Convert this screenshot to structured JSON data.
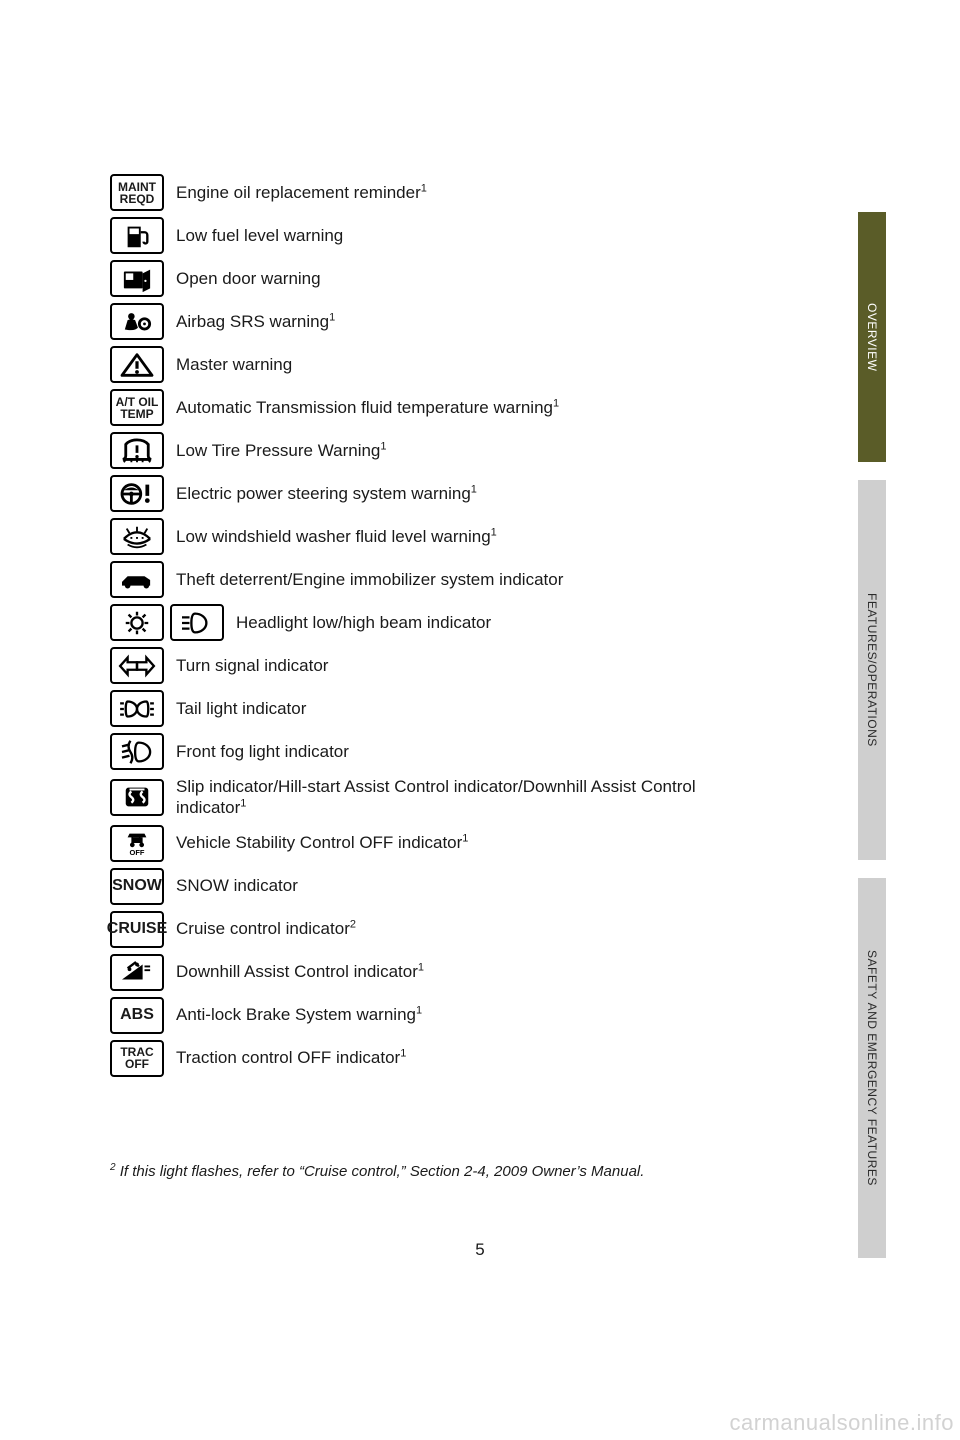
{
  "page_number": "5",
  "watermark": "carmanualsonline.info",
  "footnote": {
    "marker": "2",
    "text": " If this light flashes, refer to “Cruise control,” Section 2-4, 2009 Owner’s Manual."
  },
  "tabs": {
    "overview": "OVERVIEW",
    "features": "FEATURES/OPERATIONS",
    "safety": "SAFETY AND EMERGENCY FEATURES"
  },
  "rows": [
    {
      "icon": "maint-reqd",
      "text": "Engine oil replacement reminder",
      "sup": "1"
    },
    {
      "icon": "fuel",
      "text": "Low fuel level warning"
    },
    {
      "icon": "door",
      "text": "Open door warning"
    },
    {
      "icon": "airbag",
      "text": "Airbag SRS warning",
      "sup": "1"
    },
    {
      "icon": "master",
      "text": "Master warning"
    },
    {
      "icon": "at-oil",
      "text": "Automatic Transmission fluid temperature warning",
      "sup": "1"
    },
    {
      "icon": "tpms",
      "text": "Low Tire Pressure Warning",
      "sup": "1"
    },
    {
      "icon": "eps",
      "text": "Electric power steering system warning",
      "sup": "1"
    },
    {
      "icon": "washer",
      "text": "Low windshield washer fluid level warning",
      "sup": "1"
    },
    {
      "icon": "theft",
      "text": "Theft deterrent/Engine immobilizer system indicator"
    },
    {
      "icon": "headlight",
      "text": "Headlight low/high beam indicator",
      "double": true
    },
    {
      "icon": "turn",
      "text": "Turn signal indicator"
    },
    {
      "icon": "tail",
      "text": "Tail light indicator"
    },
    {
      "icon": "fog",
      "text": "Front fog light indicator"
    },
    {
      "icon": "slip",
      "text": "Slip indicator/Hill-start Assist Control indicator/Downhill Assist Control indicator",
      "sup": "1"
    },
    {
      "icon": "vsc-off",
      "text": "Vehicle Stability Control OFF indicator",
      "sup": "1"
    },
    {
      "icon": "snow",
      "text": "SNOW indicator"
    },
    {
      "icon": "cruise",
      "text": "Cruise control indicator",
      "sup": "2"
    },
    {
      "icon": "dac",
      "text": "Downhill Assist Control indicator",
      "sup": "1"
    },
    {
      "icon": "abs",
      "text": "Anti-lock Brake System warning",
      "sup": "1"
    },
    {
      "icon": "trac-off",
      "text": "Traction control OFF indicator",
      "sup": "1"
    }
  ],
  "icon_text": {
    "maint-reqd": [
      "MAINT",
      "REQD"
    ],
    "at-oil": [
      "A/T OIL",
      "TEMP"
    ],
    "snow": "SNOW",
    "cruise": "CRUISE",
    "abs": "ABS",
    "trac-off": [
      "TRAC",
      "OFF"
    ]
  },
  "colors": {
    "tab_active_bg": "#5a5c28",
    "tab_inactive_bg": "#cfcfcf",
    "text": "#1a1a1a"
  }
}
